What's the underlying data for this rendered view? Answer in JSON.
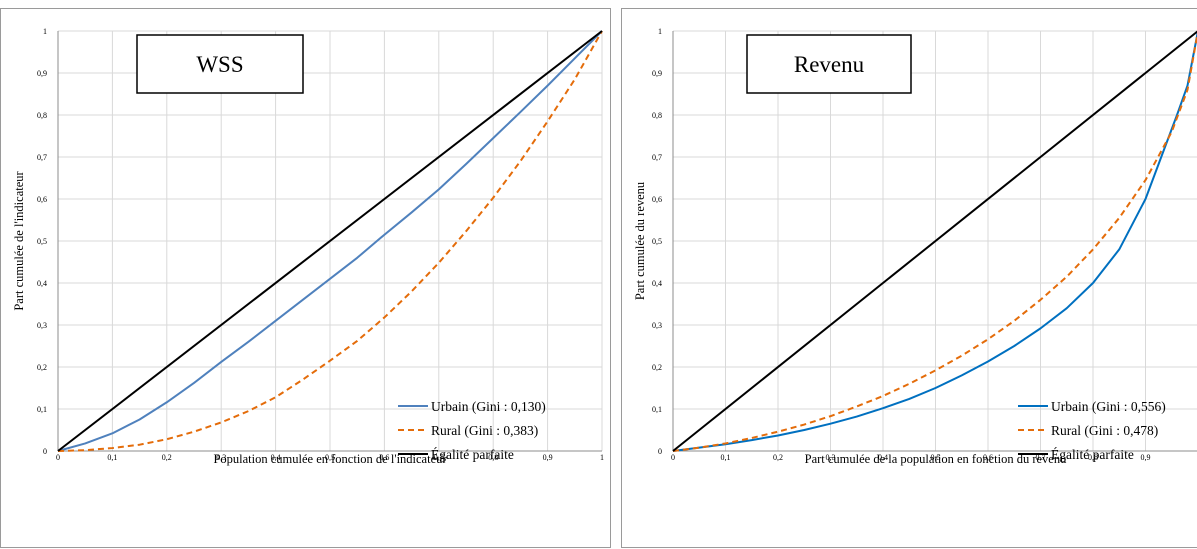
{
  "chart_data": [
    {
      "type": "line",
      "title": "WSS",
      "xlabel": "Population cumulée en fonction de l'indicateur",
      "ylabel": "Part cumulée de l'indicateur",
      "xlim": [
        0,
        1
      ],
      "ylim": [
        0,
        1
      ],
      "x_ticks": [
        "0",
        "0,1",
        "0,2",
        "0,3",
        "0,4",
        "0,5",
        "0,6",
        "0,7",
        "0,8",
        "0,9",
        "1"
      ],
      "y_ticks": [
        "0",
        "0,1",
        "0,2",
        "0,3",
        "0,4",
        "0,5",
        "0,6",
        "0,7",
        "0,8",
        "0,9",
        "1"
      ],
      "grid": true,
      "legend_position": "bottom-right",
      "series": [
        {
          "name": "Urbain (Gini : 0,130)",
          "color": "#4f81bd",
          "dash": "solid",
          "x": [
            0,
            0.05,
            0.1,
            0.15,
            0.2,
            0.25,
            0.3,
            0.35,
            0.4,
            0.45,
            0.5,
            0.55,
            0.6,
            0.65,
            0.7,
            0.75,
            0.8,
            0.85,
            0.9,
            0.95,
            1
          ],
          "y": [
            0,
            0.018,
            0.042,
            0.075,
            0.116,
            0.162,
            0.212,
            0.26,
            0.31,
            0.36,
            0.41,
            0.46,
            0.515,
            0.568,
            0.623,
            0.683,
            0.745,
            0.807,
            0.87,
            0.935,
            1
          ]
        },
        {
          "name": "Rural (Gini : 0,383)",
          "color": "#e46c0a",
          "dash": "dashed",
          "x": [
            0,
            0.05,
            0.1,
            0.15,
            0.2,
            0.25,
            0.3,
            0.35,
            0.4,
            0.45,
            0.5,
            0.55,
            0.6,
            0.65,
            0.7,
            0.75,
            0.8,
            0.85,
            0.9,
            0.95,
            1
          ],
          "y": [
            0,
            0.002,
            0.007,
            0.015,
            0.028,
            0.046,
            0.068,
            0.095,
            0.128,
            0.17,
            0.215,
            0.262,
            0.318,
            0.38,
            0.448,
            0.523,
            0.603,
            0.69,
            0.785,
            0.885,
            1
          ]
        },
        {
          "name": "Égalité parfaite",
          "color": "#000000",
          "dash": "solid",
          "x": [
            0,
            1
          ],
          "y": [
            0,
            1
          ]
        }
      ]
    },
    {
      "type": "line",
      "title": "Revenu",
      "xlabel": "Part cumulée de la population en fonction du revenu",
      "ylabel": "Part cumulée du revenu",
      "xlim": [
        0,
        1
      ],
      "ylim": [
        0,
        1
      ],
      "x_ticks": [
        "0",
        "0,1",
        "0,2",
        "0,3",
        "0,4",
        "0,5",
        "0,6",
        "0,7",
        "0,8",
        "0,9",
        ""
      ],
      "y_ticks": [
        "0",
        "0,1",
        "0,2",
        "0,3",
        "0,4",
        "0,5",
        "0,6",
        "0,7",
        "0,8",
        "0,9",
        "1"
      ],
      "grid": true,
      "legend_position": "bottom-right",
      "series": [
        {
          "name": "Urbain (Gini : 0,556)",
          "color": "#0070c0",
          "dash": "solid",
          "x": [
            0,
            0.05,
            0.1,
            0.15,
            0.2,
            0.25,
            0.3,
            0.35,
            0.4,
            0.45,
            0.5,
            0.55,
            0.6,
            0.65,
            0.7,
            0.75,
            0.8,
            0.85,
            0.9,
            0.93,
            0.96,
            0.98,
            1
          ],
          "y": [
            0,
            0.008,
            0.016,
            0.026,
            0.037,
            0.05,
            0.065,
            0.082,
            0.102,
            0.124,
            0.15,
            0.18,
            0.213,
            0.25,
            0.292,
            0.34,
            0.4,
            0.48,
            0.6,
            0.7,
            0.8,
            0.87,
            1
          ]
        },
        {
          "name": "Rural (Gini : 0,478)",
          "color": "#e46c0a",
          "dash": "dashed",
          "x": [
            0,
            0.05,
            0.1,
            0.15,
            0.2,
            0.25,
            0.3,
            0.35,
            0.4,
            0.45,
            0.5,
            0.55,
            0.6,
            0.65,
            0.7,
            0.75,
            0.8,
            0.85,
            0.9,
            0.95,
            0.98,
            1
          ],
          "y": [
            0,
            0.008,
            0.018,
            0.031,
            0.046,
            0.063,
            0.083,
            0.106,
            0.131,
            0.16,
            0.192,
            0.227,
            0.266,
            0.31,
            0.36,
            0.415,
            0.48,
            0.555,
            0.645,
            0.76,
            0.86,
            1
          ]
        },
        {
          "name": "Égalité parfaite",
          "color": "#000000",
          "dash": "solid",
          "x": [
            0,
            1
          ],
          "y": [
            0,
            1
          ]
        }
      ]
    }
  ]
}
